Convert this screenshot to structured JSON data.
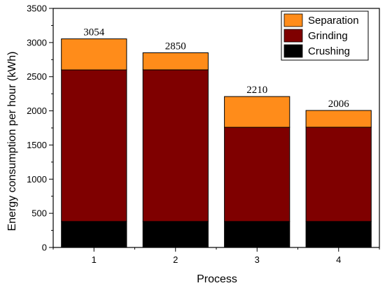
{
  "chart_data": {
    "type": "bar",
    "stacked": true,
    "categories": [
      "1",
      "2",
      "3",
      "4"
    ],
    "series": [
      {
        "name": "Crushing",
        "color": "#000000",
        "values": [
          380,
          380,
          380,
          380
        ]
      },
      {
        "name": "Grinding",
        "color": "#7f0000",
        "values": [
          2220,
          2220,
          1380,
          1380
        ]
      },
      {
        "name": "Separation",
        "color": "#ff8c1a",
        "values": [
          454,
          250,
          450,
          246
        ]
      }
    ],
    "totals": [
      3054,
      2850,
      2210,
      2006
    ],
    "total_labels": [
      "3054",
      "2850",
      "2210",
      "2006"
    ],
    "xlabel": "Process",
    "ylabel": "Energy consumption per hour (kWh)",
    "ylim": [
      0,
      3500
    ],
    "yticks": [
      0,
      500,
      1000,
      1500,
      2000,
      2500,
      3000,
      3500
    ],
    "ytick_labels": [
      "0",
      "500",
      "1000",
      "1500",
      "2000",
      "2500",
      "3000",
      "3500"
    ],
    "legend": {
      "position": "top-right",
      "order": [
        "Separation",
        "Grinding",
        "Crushing"
      ]
    },
    "grid": false
  }
}
